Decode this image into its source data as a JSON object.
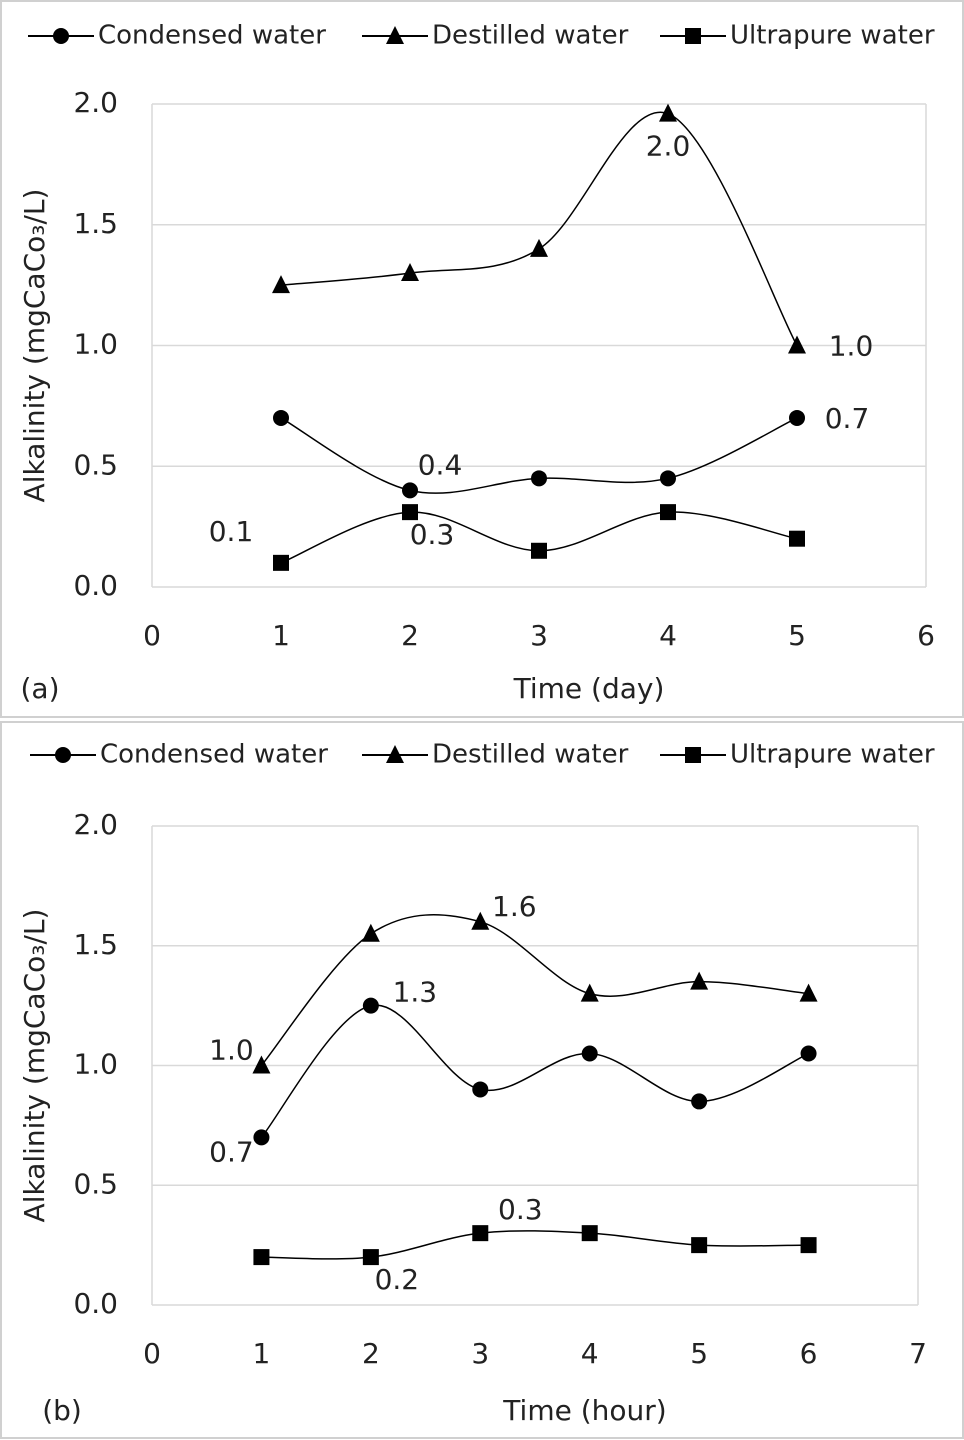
{
  "chart_data": [
    {
      "type": "line",
      "panel_label": "(a)",
      "x_label": "Time (day)",
      "y_label": "Alkalinity (mgCaCo₃/L)",
      "x": [
        1,
        2,
        3,
        4,
        5
      ],
      "series": [
        {
          "name": "Condensed water",
          "color": "#000000",
          "marker": "circle",
          "values": [
            0.7,
            0.4,
            0.45,
            0.45,
            0.7
          ],
          "value_labels": [
            null,
            "0.4",
            null,
            null,
            "0.7"
          ]
        },
        {
          "name": "Destilled water",
          "color": "#000000",
          "marker": "triangle",
          "values": [
            1.25,
            1.3,
            1.4,
            1.96,
            1.0
          ],
          "value_labels": [
            null,
            null,
            null,
            "2.0",
            "1.0"
          ]
        },
        {
          "name": "Ultrapure water",
          "color": "#000000",
          "marker": "square",
          "values": [
            0.1,
            0.31,
            0.15,
            0.31,
            0.2
          ],
          "value_labels": [
            "0.1",
            "0.3",
            null,
            null,
            null
          ]
        }
      ],
      "xlim": [
        0,
        6
      ],
      "xticks": [
        0,
        1,
        2,
        3,
        4,
        5,
        6
      ],
      "ylim": [
        0,
        2
      ],
      "yticks": [
        {
          "value": 0,
          "label": "0.0"
        },
        {
          "value": 0.5,
          "label": "0.5"
        },
        {
          "value": 1,
          "label": "1.0"
        },
        {
          "value": 1.5,
          "label": "1.5"
        },
        {
          "value": 2,
          "label": "2.0"
        }
      ],
      "grid": true,
      "legend": "top"
    },
    {
      "type": "line",
      "panel_label": "(b)",
      "x_label": "Time (hour)",
      "y_label": "Alkalinity (mgCaCo₃/L)",
      "x": [
        1,
        2,
        3,
        4,
        5,
        6
      ],
      "series": [
        {
          "name": "Condensed water",
          "color": "#000000",
          "marker": "circle",
          "values": [
            0.7,
            1.25,
            0.9,
            1.05,
            0.85,
            1.05
          ],
          "value_labels": [
            "0.7",
            "1.3",
            null,
            null,
            null,
            null
          ]
        },
        {
          "name": "Destilled water",
          "color": "#000000",
          "marker": "triangle",
          "values": [
            1.0,
            1.55,
            1.6,
            1.3,
            1.35,
            1.3
          ],
          "value_labels": [
            "1.0",
            null,
            "1.6",
            null,
            null,
            null
          ]
        },
        {
          "name": "Ultrapure water",
          "color": "#000000",
          "marker": "square",
          "values": [
            0.2,
            0.2,
            0.3,
            0.3,
            0.25,
            0.25
          ],
          "value_labels": [
            null,
            "0.2",
            "0.3",
            null,
            null,
            null
          ]
        }
      ],
      "xlim": [
        0,
        7
      ],
      "xticks": [
        0,
        1,
        2,
        3,
        4,
        5,
        6,
        7
      ],
      "ylim": [
        0,
        2
      ],
      "yticks": [
        {
          "value": 0,
          "label": "0.0"
        },
        {
          "value": 0.5,
          "label": "0.5"
        },
        {
          "value": 1,
          "label": "1.0"
        },
        {
          "value": 1.5,
          "label": "1.5"
        },
        {
          "value": 2,
          "label": "2.0"
        }
      ],
      "grid": true,
      "legend": "top"
    }
  ]
}
